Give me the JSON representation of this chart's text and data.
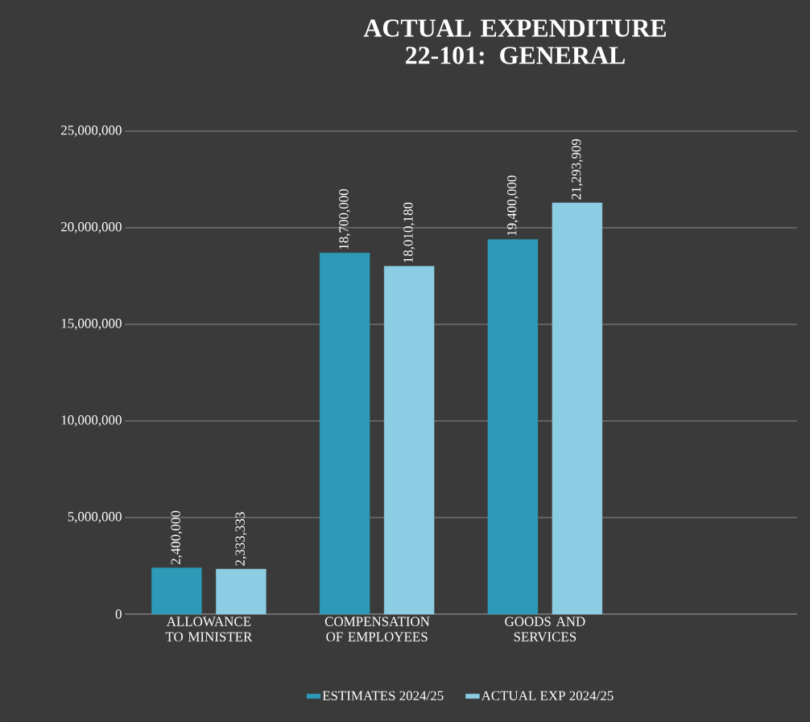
{
  "chart_data": {
    "type": "bar",
    "title": "ACTUAL EXPENDITURE 22-101: GENERAL",
    "categories": [
      "ALLOWANCE TO MINISTER",
      "COMPENSATION OF EMPLOYEES",
      "GOODS AND SERVICES",
      null
    ],
    "series": [
      {
        "name": "ESTIMATES 2024/25",
        "color": "#2d9ab8",
        "values": [
          2400000,
          18700000,
          19400000,
          null
        ],
        "value_labels": [
          "2,400,000",
          "18,700,000",
          "19,400,000",
          null
        ]
      },
      {
        "name": "ACTUAL EXP 2024/25",
        "color": "#8dcde3",
        "values": [
          2333333,
          18010180,
          21293909,
          null
        ],
        "value_labels": [
          "2,333,333",
          "18,010,180",
          "21,293,909",
          null
        ]
      }
    ],
    "ylim": [
      0,
      25000000
    ],
    "yticks": [
      {
        "value": 0,
        "label": "0"
      },
      {
        "value": 5000000,
        "label": "5,000,000"
      },
      {
        "value": 10000000,
        "label": "10,000,000"
      },
      {
        "value": 15000000,
        "label": "15,000,000"
      },
      {
        "value": 20000000,
        "label": "20,000,000"
      },
      {
        "value": 25000000,
        "label": "25,000,000"
      }
    ],
    "grid": "y",
    "legend": "bottom"
  }
}
